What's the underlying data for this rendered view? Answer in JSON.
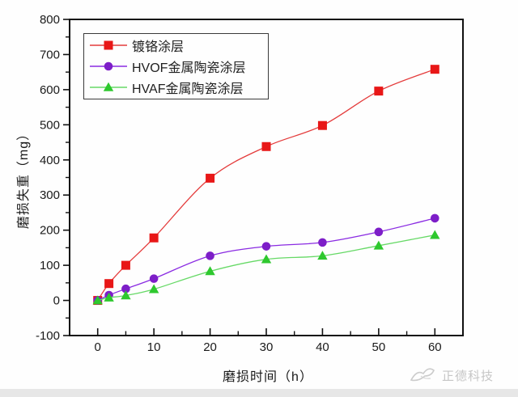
{
  "page": {
    "background": "#fefefe",
    "footer_bar_color": "#e7e7e7"
  },
  "watermark": {
    "text": "正德科技",
    "color": "#c6c6c6",
    "logo_icon": "bird-logo-icon"
  },
  "chart_data": {
    "type": "line",
    "title": "",
    "xlabel": "磨损时间（h）",
    "ylabel": "磨损失重（mg）",
    "xlim": [
      -5,
      65
    ],
    "ylim": [
      -100,
      800
    ],
    "xticks_major": [
      0,
      10,
      20,
      30,
      40,
      50,
      60
    ],
    "xticks_minor": [
      5,
      15,
      25,
      35,
      45,
      55
    ],
    "yticks_major": [
      -100,
      0,
      100,
      200,
      300,
      400,
      500,
      600,
      700,
      800
    ],
    "yticks_minor": [
      -50,
      50,
      150,
      250,
      350,
      450,
      550,
      650,
      750
    ],
    "grid": false,
    "legend_position": "top-left-inside",
    "frame": true,
    "x": [
      0,
      2,
      5,
      10,
      20,
      30,
      40,
      50,
      60
    ],
    "series": [
      {
        "name": "镀铬涂层",
        "marker": "square",
        "marker_color": "#e81717",
        "line_color": "#e43b3b",
        "values": [
          0,
          48,
          100,
          178,
          348,
          438,
          498,
          596,
          658
        ]
      },
      {
        "name": "HVOF金属陶瓷涂层",
        "marker": "circle",
        "marker_color": "#7d1ec8",
        "line_color": "#8a2be2",
        "values": [
          0,
          15,
          33,
          62,
          127,
          154,
          165,
          195,
          234
        ]
      },
      {
        "name": "HVAF金属陶瓷涂层",
        "marker": "triangle",
        "marker_color": "#2ec82e",
        "line_color": "#66d966",
        "values": [
          0,
          8,
          14,
          32,
          83,
          117,
          127,
          156,
          186
        ]
      }
    ]
  }
}
